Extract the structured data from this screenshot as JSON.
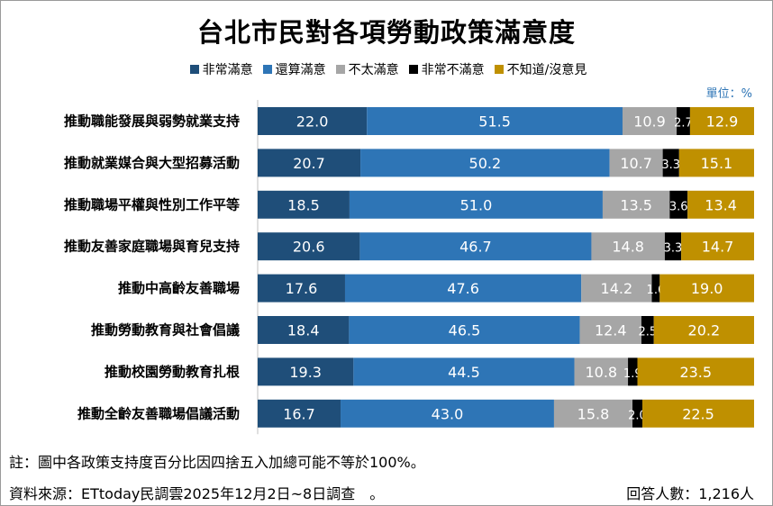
{
  "title": "台北市民對各項勞動政策滿意度",
  "unit": "單位：%",
  "note": "註：圖中各政策支持度百分比因四捨五入加總可能不等於100%。",
  "source": "資料來源：ETtoday民調雲2025年12月2日~8日調查　。",
  "respondents": "回答人數：1,216人",
  "chart_data": {
    "type": "bar",
    "orientation": "horizontal",
    "stacked": true,
    "title": "台北市民對各項勞動政策滿意度",
    "xlim": [
      0,
      100
    ],
    "legend_position": "top",
    "categories": [
      "推動職能發展與弱勢就業支持",
      "推動就業媒合與大型招募活動",
      "推動職場平權與性別工作平等",
      "推動友善家庭職場與育兒支持",
      "推動中高齡友善職場",
      "推動勞動教育與社會倡議",
      "推動校園勞動教育扎根",
      "推動全齡友善職場倡議活動"
    ],
    "series": [
      {
        "name": "非常滿意",
        "color": "#1f4e79",
        "label_color": "#ffffff",
        "values": [
          22.0,
          20.7,
          18.5,
          20.6,
          17.6,
          18.4,
          19.3,
          16.7
        ]
      },
      {
        "name": "還算滿意",
        "color": "#2e75b6",
        "label_color": "#ffffff",
        "values": [
          51.5,
          50.2,
          51.0,
          46.7,
          47.6,
          46.5,
          44.5,
          43.0
        ]
      },
      {
        "name": "不太滿意",
        "color": "#a6a6a6",
        "label_color": "#ffffff",
        "values": [
          10.9,
          10.7,
          13.5,
          14.8,
          14.2,
          12.4,
          10.8,
          15.8
        ]
      },
      {
        "name": "非常不滿意",
        "color": "#000000",
        "label_color": "#ffffff",
        "values": [
          2.7,
          3.3,
          3.6,
          3.3,
          1.6,
          2.5,
          1.9,
          2.0
        ]
      },
      {
        "name": "不知道/沒意見",
        "color": "#bf9000",
        "label_color": "#ffffff",
        "values": [
          12.9,
          15.1,
          13.4,
          14.7,
          19.0,
          20.2,
          23.5,
          22.5
        ]
      }
    ]
  }
}
